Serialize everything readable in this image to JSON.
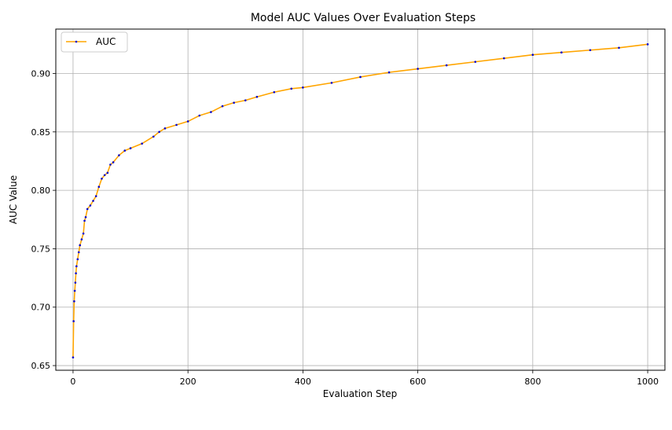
{
  "chart_data": {
    "type": "line",
    "title": "Model AUC Values Over Evaluation Steps",
    "xlabel": "Evaluation Step",
    "ylabel": "AUC Value",
    "xlim": [
      -30,
      1030
    ],
    "ylim": [
      0.646,
      0.938
    ],
    "x_ticks": [
      0,
      200,
      400,
      600,
      800,
      1000
    ],
    "y_ticks": [
      0.65,
      0.7,
      0.75,
      0.8,
      0.85,
      0.9
    ],
    "y_tick_labels": [
      "0.65",
      "0.70",
      "0.75",
      "0.80",
      "0.85",
      "0.90"
    ],
    "grid": true,
    "legend": {
      "position": "top-left",
      "entries": [
        "AUC"
      ]
    },
    "series": [
      {
        "name": "AUC",
        "line_color": "#ffa500",
        "marker_color": "#0000cc",
        "x": [
          0,
          1,
          2,
          3,
          4,
          5,
          6,
          8,
          10,
          12,
          15,
          18,
          20,
          22,
          25,
          30,
          35,
          40,
          45,
          50,
          55,
          60,
          65,
          70,
          80,
          90,
          100,
          120,
          140,
          150,
          160,
          180,
          200,
          220,
          240,
          260,
          280,
          300,
          320,
          350,
          380,
          400,
          450,
          500,
          550,
          600,
          650,
          700,
          750,
          800,
          850,
          900,
          950,
          1000
        ],
        "y": [
          0.657,
          0.688,
          0.705,
          0.714,
          0.721,
          0.729,
          0.735,
          0.741,
          0.747,
          0.753,
          0.758,
          0.763,
          0.774,
          0.777,
          0.784,
          0.787,
          0.791,
          0.795,
          0.803,
          0.81,
          0.813,
          0.815,
          0.822,
          0.824,
          0.83,
          0.834,
          0.836,
          0.84,
          0.846,
          0.85,
          0.853,
          0.856,
          0.859,
          0.864,
          0.867,
          0.872,
          0.875,
          0.877,
          0.88,
          0.884,
          0.887,
          0.888,
          0.892,
          0.897,
          0.901,
          0.904,
          0.907,
          0.91,
          0.913,
          0.916,
          0.918,
          0.92,
          0.922,
          0.925
        ]
      }
    ]
  }
}
